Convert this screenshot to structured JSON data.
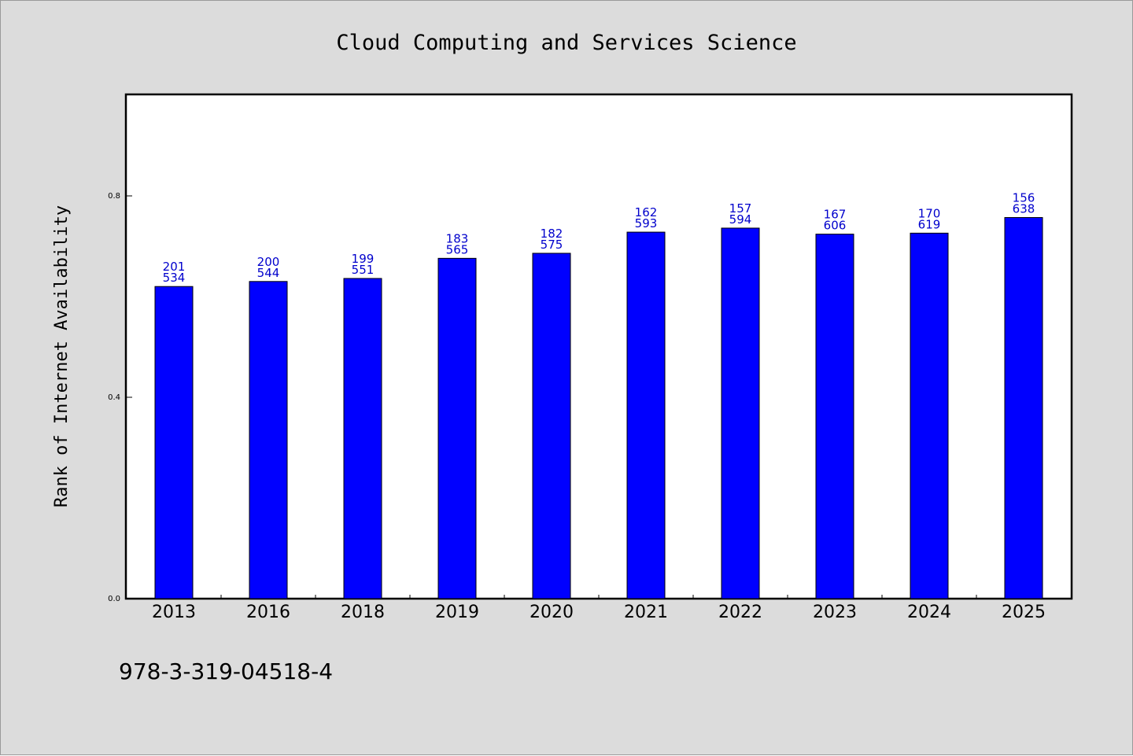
{
  "chart_data": {
    "type": "bar",
    "title": "Cloud Computing and Services Science",
    "xlabel": "",
    "ylabel": "Rank of Internet Availability",
    "categories": [
      "2013",
      "2016",
      "2018",
      "2019",
      "2020",
      "2021",
      "2022",
      "2023",
      "2024",
      "2025"
    ],
    "values": [
      0.62,
      0.63,
      0.636,
      0.676,
      0.686,
      0.728,
      0.736,
      0.724,
      0.726,
      0.757
    ],
    "label_top": [
      "201",
      "200",
      "199",
      "183",
      "182",
      "162",
      "157",
      "167",
      "170",
      "156"
    ],
    "label_bottom": [
      "534",
      "544",
      "551",
      "565",
      "575",
      "593",
      "594",
      "606",
      "619",
      "638"
    ],
    "ylim": [
      0,
      1.0
    ],
    "yticks": [
      0.0,
      0.4,
      0.8
    ],
    "ytick_labels": [
      "0.0",
      "0.4",
      "0.8"
    ],
    "grid": false,
    "legend": "none",
    "bar_color": "#0000ff",
    "label_color": "#0000cc",
    "background_color": "#dcdcdc",
    "plot_background": "#ffffff"
  },
  "footer": {
    "isbn": "978-3-319-04518-4"
  }
}
